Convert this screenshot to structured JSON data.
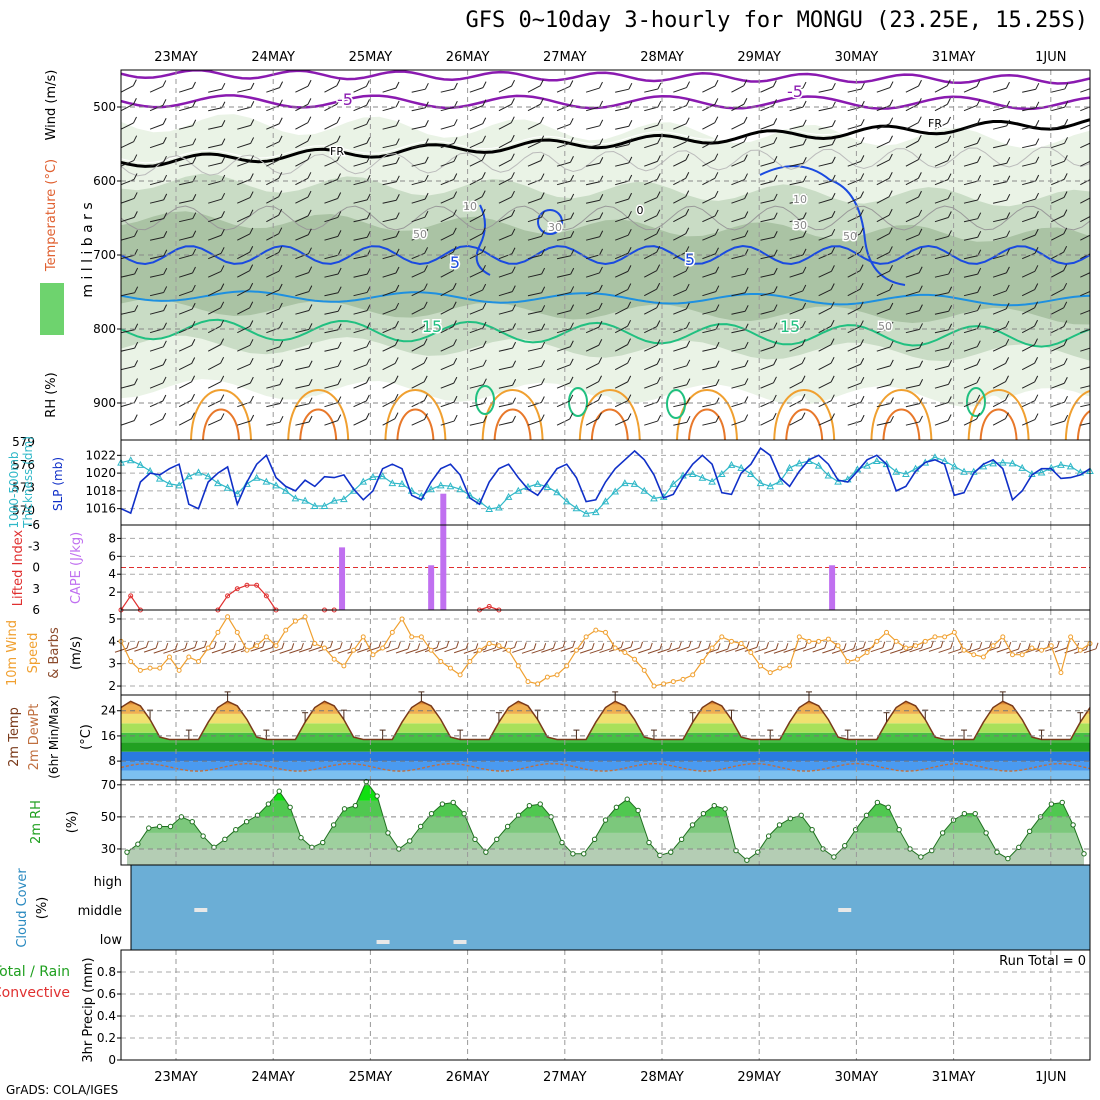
{
  "title": "GFS 0~10day 3-hourly for MONGU (23.25E, 15.25S)",
  "footer": "GrADS: COLA/IGES",
  "dates": [
    "23MAY",
    "24MAY",
    "25MAY",
    "26MAY",
    "27MAY",
    "28MAY",
    "29MAY",
    "30MAY",
    "31MAY",
    "1JUN"
  ],
  "colors": {
    "cape": "#c070f0",
    "li": "#e03030",
    "slp": "#1030c8",
    "thickness": "#30b8c8",
    "wind": "#f0a030",
    "temp_area": "#2a9a2a",
    "rh_area": "#30c030",
    "cloud": "#6baed6",
    "purple_contour": "#8a1ab0",
    "blue_contour": "#1a4ae0",
    "green_contour": "#20c080",
    "orange_contour": "#f0a030"
  },
  "chart_data": [
    {
      "panel": "upper-air",
      "type": "contour",
      "ylabel_parts": [
        "Wind (m/s)",
        "Temperature (°C)",
        "RH (%)"
      ],
      "y_units": "m i l l i b a r s",
      "yticks": [
        500,
        600,
        700,
        800,
        900
      ],
      "ylim": [
        450,
        950
      ],
      "contour_labels": [
        "-5",
        "-5",
        "FR",
        "FR",
        "10",
        "10",
        "30",
        "30",
        "50",
        "50",
        "50",
        "0",
        "5",
        "5",
        "15",
        "15"
      ]
    },
    {
      "panel": "slp-thickness",
      "type": "line",
      "ylabel_left": "1000-500mb Thickness (dm)",
      "ylabel_right": "SLP (mb)",
      "yticks_left": [
        570,
        573,
        576,
        579
      ],
      "yticks_right": [
        1016,
        1018,
        1020,
        1022
      ],
      "series": [
        {
          "name": "SLP (mb)",
          "values": [
            1016,
            1015.5,
            1019,
            1020,
            1019.8,
            1020.5,
            1021,
            1016.5,
            1016,
            1019,
            1020,
            1020.7,
            1016.5,
            1019,
            1021,
            1022,
            1019.5,
            1018.5,
            1018,
            1019.2,
            1018.5,
            1019.6,
            1019.5,
            1019.8,
            1018.2,
            1017,
            1018,
            1020.5,
            1021,
            1020.5,
            1017.5,
            1017,
            1019,
            1020.5,
            1021,
            1019.8,
            1017.2,
            1016.5,
            1019,
            1020.5,
            1021,
            1019.5,
            1018.2,
            1017.5,
            1019,
            1020.5,
            1021,
            1019.5,
            1016.8,
            1017,
            1019,
            1020.5,
            1021.5,
            1022.5,
            1021.5,
            1019.8,
            1017.2,
            1017.6,
            1019.5,
            1021,
            1022,
            1021,
            1017.8,
            1017.6,
            1020,
            1021,
            1022.8,
            1022,
            1019.5,
            1018.5,
            1020.2,
            1021.5,
            1022,
            1021,
            1019.2,
            1019,
            1020.2,
            1021.5,
            1022,
            1021,
            1018,
            1018.5,
            1020.2,
            1021.2,
            1021.5,
            1021,
            1017.5,
            1017.8,
            1020,
            1021,
            1021.5,
            1020.5,
            1017,
            1018,
            1019.8,
            1020.5,
            1020.5,
            1019.4,
            1019.5,
            1019.8,
            1020.5
          ]
        },
        {
          "name": "Thickness (dm)",
          "values": [
            576.3,
            576.6,
            576,
            575.2,
            574.2,
            573.5,
            573.3,
            574.5,
            575,
            574.5,
            573.6,
            573,
            572.2,
            573.5,
            574.3,
            573.8,
            573.3,
            572.6,
            571.6,
            571.3,
            570.6,
            570.6,
            571.3,
            571.5,
            572.6,
            573.8,
            574.4,
            574.5,
            573.6,
            573.5,
            572.6,
            571.9,
            572.8,
            573.3,
            573.2,
            572.8,
            572,
            571.2,
            570.2,
            570.4,
            571.8,
            572.6,
            573.1,
            573.5,
            573.1,
            572.4,
            571.2,
            570.3,
            569.6,
            569.8,
            571.2,
            572.5,
            573.6,
            573.5,
            572.6,
            571.6,
            571.8,
            573.5,
            574.6,
            574.8,
            574.3,
            573.8,
            574.8,
            576,
            575.6,
            574.8,
            573.6,
            573.2,
            573.8,
            575.6,
            576.2,
            576.5,
            575.9,
            574.6,
            573.8,
            574.1,
            575.4,
            575.9,
            576.5,
            576.1,
            575.1,
            574.8,
            575.5,
            576.3,
            577,
            576.5,
            575.8,
            575.1,
            575.1,
            575.8,
            576.2,
            576.3,
            576.2,
            575.6,
            574.8,
            575,
            575.6,
            576,
            575.8,
            575,
            575.2
          ]
        }
      ]
    },
    {
      "panel": "cape-li",
      "type": "bar",
      "ylabel_left": "Lifted Index",
      "ylabel_right": "CAPE (J/kg)",
      "yticks_left": [
        -6,
        -3,
        0,
        3,
        6
      ],
      "yticks_left_labels": [
        "-6",
        "-3",
        "0",
        "3",
        "6"
      ],
      "yticks_right": [
        2,
        4,
        6,
        8
      ],
      "cape_bars": [
        {
          "x_hr": 41,
          "value": 7
        },
        {
          "x_hr": 63,
          "value": 5
        },
        {
          "x_hr": 66,
          "value": 13
        },
        {
          "x_hr": 162,
          "value": 5
        }
      ],
      "li_points": [
        {
          "x_hr": 0,
          "value": 6
        },
        {
          "x_hr": 3,
          "value": 4
        },
        {
          "x_hr": 6,
          "value": 6
        },
        {
          "x_hr": 30,
          "value": 6
        },
        {
          "x_hr": 33,
          "value": 4
        },
        {
          "x_hr": 36,
          "value": 3
        },
        {
          "x_hr": 39,
          "value": 2.5
        },
        {
          "x_hr": 42,
          "value": 2.5
        },
        {
          "x_hr": 45,
          "value": 4
        },
        {
          "x_hr": 48,
          "value": 6
        },
        {
          "x_hr": 63,
          "value": 6
        },
        {
          "x_hr": 66,
          "value": 6
        },
        {
          "x_hr": 111,
          "value": 6
        },
        {
          "x_hr": 114,
          "value": 5.5
        },
        {
          "x_hr": 117,
          "value": 6
        }
      ]
    },
    {
      "panel": "wind10m",
      "type": "line",
      "ylabel_left": "10m Wind Speed",
      "ylabel_right": "& Barbs (m/s)",
      "yticks": [
        2,
        3,
        4,
        5
      ],
      "series": [
        {
          "name": "10m Wind Speed",
          "values": [
            4,
            3.1,
            2.7,
            2.8,
            2.8,
            3.3,
            2.7,
            3.3,
            3.1,
            3.7,
            4.4,
            5.1,
            4.4,
            3.6,
            3.8,
            4.2,
            3.8,
            4.5,
            4.9,
            5.1,
            3.9,
            3.7,
            3.2,
            2.9,
            3.6,
            4.2,
            3.4,
            3.7,
            4.4,
            5,
            4.2,
            4.2,
            3.6,
            3.1,
            2.8,
            2.5,
            3.1,
            3.6,
            3.9,
            3.8,
            3.6,
            2.9,
            2.2,
            2.1,
            2.4,
            2.5,
            2.9,
            3.6,
            4.2,
            4.5,
            4.4,
            3.7,
            3.5,
            3.2,
            2.7,
            2,
            2.1,
            2.2,
            2.3,
            2.5,
            3.1,
            3.7,
            4.2,
            4,
            3.9,
            3.5,
            2.9,
            2.6,
            2.8,
            2.9,
            4.2,
            4,
            4,
            4.1,
            3.8,
            3.1,
            3.2,
            3.5,
            4,
            4.4,
            4,
            3.7,
            3.8,
            4,
            4.2,
            4.2,
            4.4,
            3.6,
            3.4,
            3.3,
            3.8,
            4.2,
            3.4,
            3.4,
            3.7,
            3.6,
            3.8,
            2.6,
            4.2,
            3.6,
            3.9
          ]
        }
      ]
    },
    {
      "panel": "temp-dewpt",
      "type": "area",
      "ylabel_lines": [
        "2m Temp",
        "2m DewPt",
        "(6hr Min/Max)"
      ],
      "ylabel_units": "(°C)",
      "yticks": [
        8,
        16,
        24
      ],
      "ylim": [
        2,
        29
      ]
    },
    {
      "panel": "rh2m",
      "type": "area",
      "ylabel": "2m RH",
      "ylabel_units": "(%)",
      "yticks": [
        30,
        50,
        70
      ],
      "series": [
        {
          "name": "2m RH",
          "values": [
            28,
            33,
            43,
            44,
            44,
            50,
            47,
            38,
            31,
            36,
            42,
            47,
            51,
            58,
            66,
            56,
            37,
            31,
            34,
            45,
            55,
            57,
            72,
            63,
            40,
            30,
            35,
            44,
            52,
            58,
            59,
            52,
            36,
            28,
            36,
            44,
            51,
            57,
            58,
            50,
            34,
            27,
            27,
            36,
            48,
            56,
            61,
            54,
            34,
            26,
            28,
            36,
            45,
            52,
            57,
            55,
            29,
            23,
            28,
            38,
            45,
            49,
            51,
            42,
            30,
            25,
            32,
            42,
            51,
            59,
            56,
            42,
            30,
            25,
            29,
            40,
            48,
            52,
            52,
            40,
            28,
            24,
            31,
            41,
            50,
            58,
            59,
            45,
            27
          ]
        }
      ]
    },
    {
      "panel": "cloud-cover",
      "type": "heatmap",
      "ylabel": "Cloud Cover (%)",
      "levels": [
        "high",
        "middle",
        "low"
      ],
      "clear_marks": [
        {
          "level": "middle",
          "x_hr": 6
        },
        {
          "level": "low",
          "x_hr": 51
        },
        {
          "level": "low",
          "x_hr": 70
        },
        {
          "level": "middle",
          "x_hr": 165
        }
      ]
    },
    {
      "panel": "precip",
      "type": "bar",
      "ylabel_lines": [
        "Total / Rain",
        "Convective"
      ],
      "ylabel_units": "3hr Precip (mm)",
      "yticks": [
        0,
        0.2,
        0.4,
        0.6,
        0.8
      ],
      "yticks_labels": [
        "0",
        "0.2",
        "0.4",
        "0.6",
        "0.8"
      ],
      "ylim": [
        0,
        1
      ],
      "run_total_label": "Run Total = 0",
      "values": []
    }
  ]
}
